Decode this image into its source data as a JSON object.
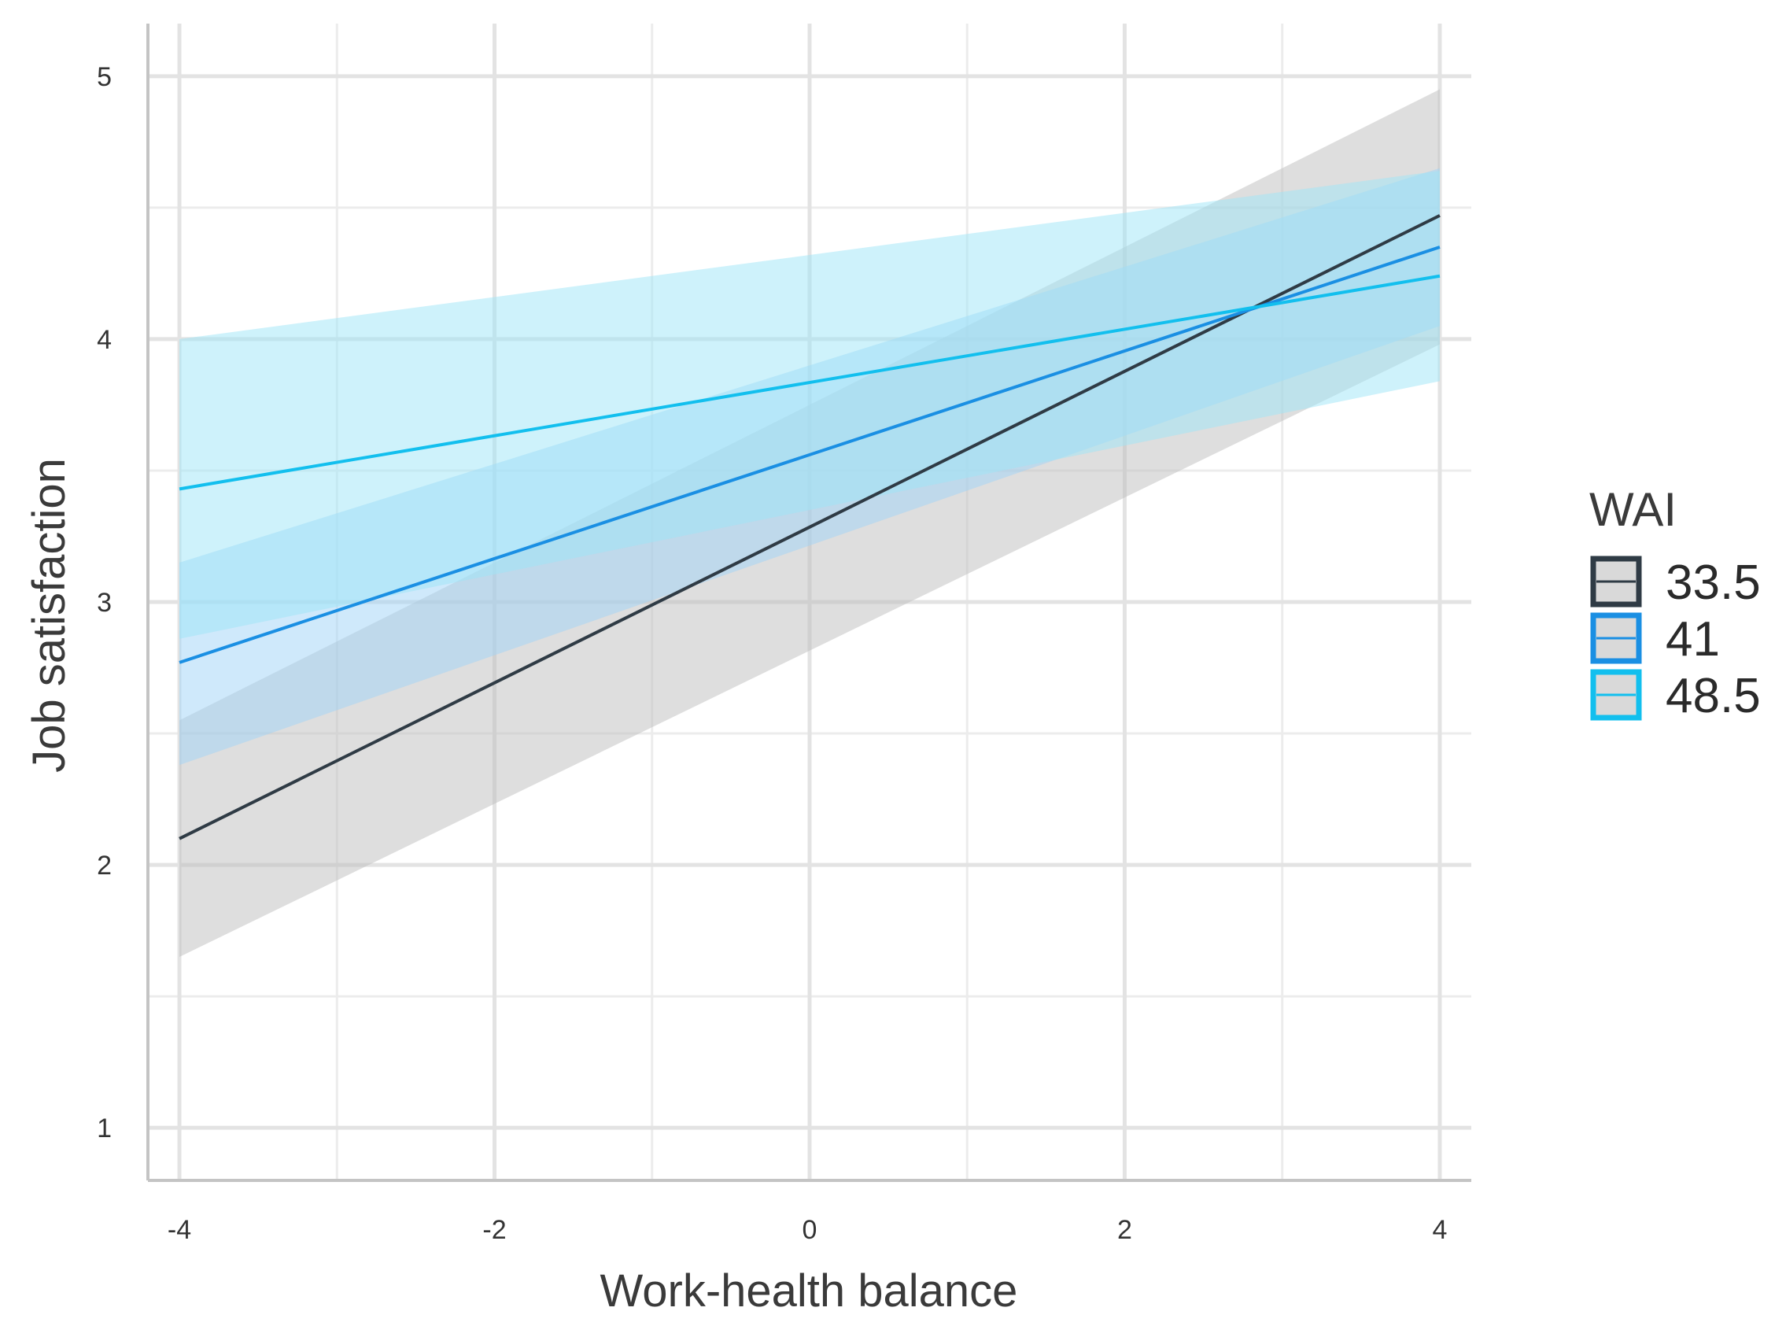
{
  "chart_data": {
    "type": "line",
    "title": "",
    "xlabel": "Work-health balance",
    "ylabel": "Job satisfaction",
    "xlim": [
      -4.2,
      4.2
    ],
    "ylim": [
      0.8,
      5.2
    ],
    "x_ticks": [
      -4,
      -2,
      0,
      2,
      4
    ],
    "x_tick_labels": [
      "-4",
      "-2",
      "0",
      "2",
      "4"
    ],
    "y_ticks": [
      1,
      2,
      3,
      4,
      5
    ],
    "y_tick_labels": [
      "1",
      "2",
      "3",
      "4",
      "5"
    ],
    "grid": true,
    "legend": {
      "title": "WAI",
      "position": "right"
    },
    "x": [
      -4,
      4
    ],
    "series": [
      {
        "name": "33.5",
        "color": "#2f3b45",
        "fill": "#bdbdbd",
        "y": [
          2.1,
          4.47
        ],
        "lower": [
          1.65,
          3.98
        ],
        "upper": [
          2.55,
          4.95
        ]
      },
      {
        "name": "41",
        "color": "#1a8fe3",
        "fill": "#9fd3f7",
        "y": [
          2.77,
          4.35
        ],
        "lower": [
          2.38,
          4.05
        ],
        "upper": [
          3.15,
          4.65
        ]
      },
      {
        "name": "48.5",
        "color": "#12bfee",
        "fill": "#9ee5f8",
        "y": [
          3.43,
          4.24
        ],
        "lower": [
          2.86,
          3.84
        ],
        "upper": [
          4.0,
          4.64
        ]
      }
    ]
  }
}
